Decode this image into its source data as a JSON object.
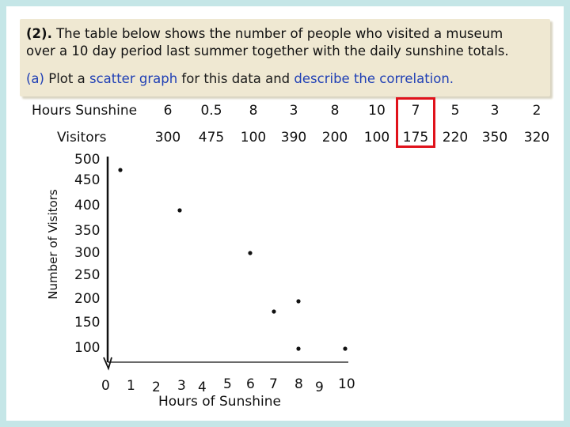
{
  "header": {
    "question_number": "(2).",
    "line1_rest": "The table below shows the number of people who visited a museum",
    "line2": "over a 10 day period last summer together with the daily sunshine totals.",
    "part_label": "(a)",
    "part_plot": "Plot a",
    "part_scatter": "scatter graph",
    "part_for": "for this data and",
    "part_describe": "describe the correlation."
  },
  "table": {
    "row1_label": "Hours Sunshine",
    "row2_label": "Visitors",
    "sunshine": [
      "6",
      "0.5",
      "8",
      "3",
      "8",
      "10",
      "7",
      "5",
      "3",
      "2"
    ],
    "visitors": [
      "300",
      "475",
      "100",
      "390",
      "200",
      "100",
      "175",
      "220",
      "350",
      "320"
    ],
    "highlight_column": 6,
    "highlight_color": "#e0121b"
  },
  "chart_data": {
    "type": "scatter",
    "title": "",
    "xlabel": "Hours of Sunshine",
    "ylabel": "Number of Visitors",
    "x_ticks": [
      "0",
      "1",
      "2",
      "3",
      "4",
      "5",
      "6",
      "7",
      "8",
      "9",
      "10"
    ],
    "y_ticks": [
      "500",
      "450",
      "400",
      "350",
      "300",
      "250",
      "200",
      "150",
      "100"
    ],
    "xlim": [
      0,
      10
    ],
    "ylim": [
      100,
      500
    ],
    "grid": false,
    "points": [
      {
        "x": 0.5,
        "y": 475
      },
      {
        "x": 3,
        "y": 390
      },
      {
        "x": 6,
        "y": 300
      },
      {
        "x": 7,
        "y": 175
      },
      {
        "x": 8,
        "y": 200
      },
      {
        "x": 8,
        "y": 100
      },
      {
        "x": 10,
        "y": 100
      }
    ],
    "point_color": "#111111"
  }
}
